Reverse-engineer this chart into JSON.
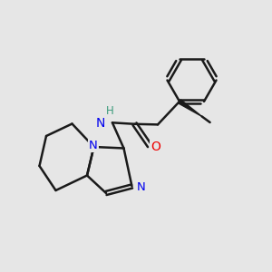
{
  "bg_color": "#e6e6e6",
  "bond_color": "#1a1a1a",
  "n_color": "#0000ee",
  "o_color": "#ee0000",
  "h_color": "#3a9a7a",
  "line_width": 1.8,
  "figsize": [
    3.0,
    3.0
  ],
  "dpi": 100,
  "xlim": [
    0,
    10
  ],
  "ylim": [
    0,
    10
  ]
}
